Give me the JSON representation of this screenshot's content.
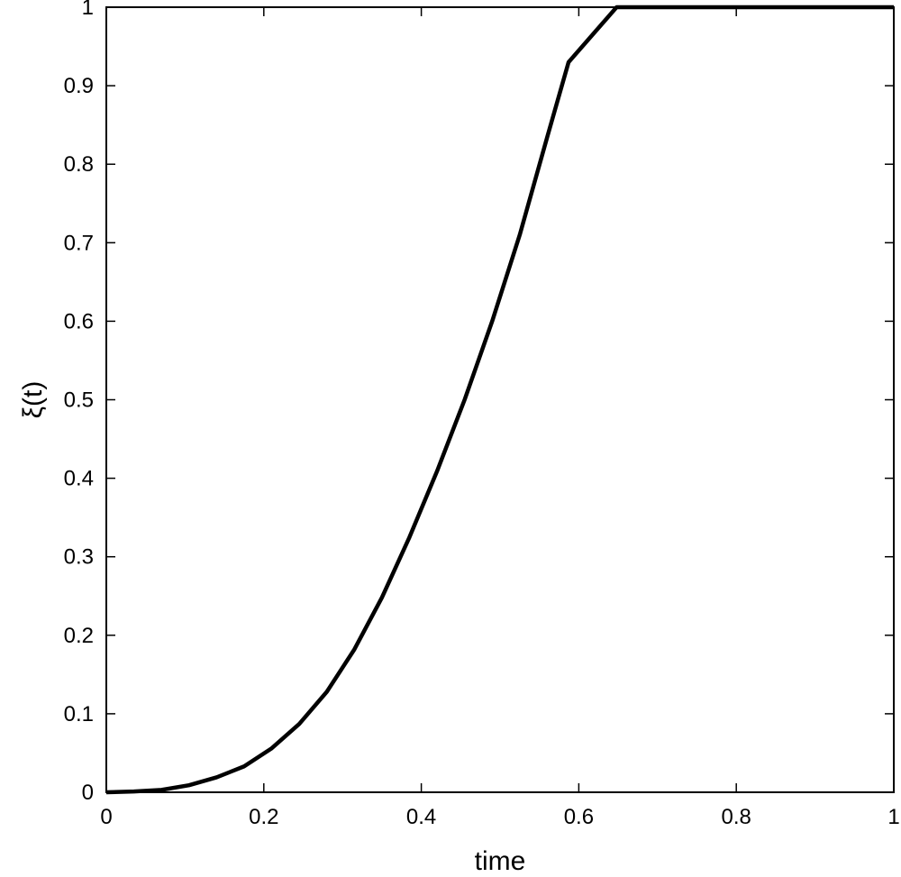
{
  "chart_data": {
    "type": "line",
    "title": "",
    "xlabel": "time",
    "ylabel": "ξ(t)",
    "xlim": [
      0,
      1
    ],
    "ylim": [
      0,
      1
    ],
    "grid": false,
    "legend": "none",
    "x_ticks": [
      {
        "value": 0,
        "label": "0"
      },
      {
        "value": 0.2,
        "label": "0.2"
      },
      {
        "value": 0.4,
        "label": "0.4"
      },
      {
        "value": 0.6,
        "label": "0.6"
      },
      {
        "value": 0.8,
        "label": "0.8"
      },
      {
        "value": 1,
        "label": "1"
      }
    ],
    "y_ticks": [
      {
        "value": 0,
        "label": "0"
      },
      {
        "value": 0.1,
        "label": "0.1"
      },
      {
        "value": 0.2,
        "label": "0.2"
      },
      {
        "value": 0.3,
        "label": "0.3"
      },
      {
        "value": 0.4,
        "label": "0.4"
      },
      {
        "value": 0.5,
        "label": "0.5"
      },
      {
        "value": 0.6,
        "label": "0.6"
      },
      {
        "value": 0.7,
        "label": "0.7"
      },
      {
        "value": 0.8,
        "label": "0.8"
      },
      {
        "value": 0.9,
        "label": "0.9"
      },
      {
        "value": 1,
        "label": "1"
      }
    ],
    "series": [
      {
        "color": "#000000",
        "x": [
          0,
          0.035,
          0.07,
          0.105,
          0.14,
          0.175,
          0.21,
          0.245,
          0.28,
          0.315,
          0.35,
          0.385,
          0.42,
          0.455,
          0.49,
          0.525,
          0.56,
          0.587,
          0.648,
          0.7,
          0.8,
          0.9,
          1
        ],
        "y": [
          0,
          0.001,
          0.003,
          0.009,
          0.019,
          0.033,
          0.056,
          0.087,
          0.128,
          0.182,
          0.248,
          0.325,
          0.409,
          0.5,
          0.6,
          0.71,
          0.835,
          0.93,
          1,
          1,
          1,
          1,
          1
        ]
      }
    ]
  }
}
